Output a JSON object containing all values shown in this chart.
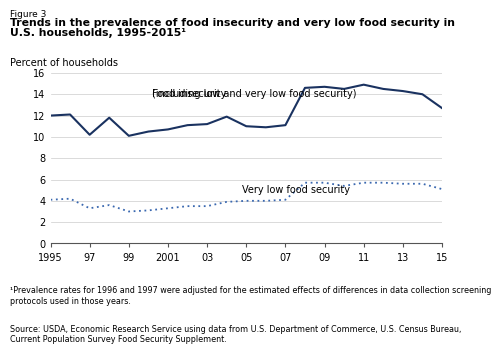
{
  "figure_label": "Figure 3",
  "title_line1": "Trends in the prevalence of food insecurity and very low food security in",
  "title_line2": "U.S. households, 1995-2015¹",
  "ylabel": "Percent of households",
  "years": [
    1995,
    1996,
    1997,
    1998,
    1999,
    2000,
    2001,
    2002,
    2003,
    2004,
    2005,
    2006,
    2007,
    2008,
    2009,
    2010,
    2011,
    2012,
    2013,
    2014,
    2015
  ],
  "food_insecurity": [
    12.0,
    12.1,
    10.2,
    11.8,
    10.1,
    10.5,
    10.7,
    11.1,
    11.2,
    11.9,
    11.0,
    10.9,
    11.1,
    14.6,
    14.7,
    14.5,
    14.9,
    14.5,
    14.3,
    14.0,
    12.7
  ],
  "very_low_food_security": [
    4.1,
    4.2,
    3.3,
    3.6,
    3.0,
    3.1,
    3.3,
    3.5,
    3.5,
    3.9,
    4.0,
    4.0,
    4.1,
    5.7,
    5.7,
    5.4,
    5.7,
    5.7,
    5.6,
    5.6,
    5.1
  ],
  "food_insecurity_color": "#1a3260",
  "very_low_color": "#3a68b0",
  "xtick_labels": [
    "1995",
    "97",
    "99",
    "2001",
    "03",
    "05",
    "07",
    "09",
    "11",
    "13",
    "15"
  ],
  "xtick_positions": [
    1995,
    1997,
    1999,
    2001,
    2003,
    2005,
    2007,
    2009,
    2011,
    2013,
    2015
  ],
  "ylim": [
    0,
    16
  ],
  "yticks": [
    0,
    2,
    4,
    6,
    8,
    10,
    12,
    14,
    16
  ],
  "footnote1": "¹Prevalence rates for 1996 and 1997 were adjusted for the estimated effects of differences in data collection screening\nprotocols used in those years.",
  "source": "Source: USDA, Economic Research Service using data from U.S. Department of Commerce, U.S. Census Bureau,\nCurrent Population Survey Food Security Supplement.",
  "food_insecurity_label_1": "Food insecurity",
  "food_insecurity_label_2": "(including low and very low food security)",
  "very_low_label": "Very low food security"
}
